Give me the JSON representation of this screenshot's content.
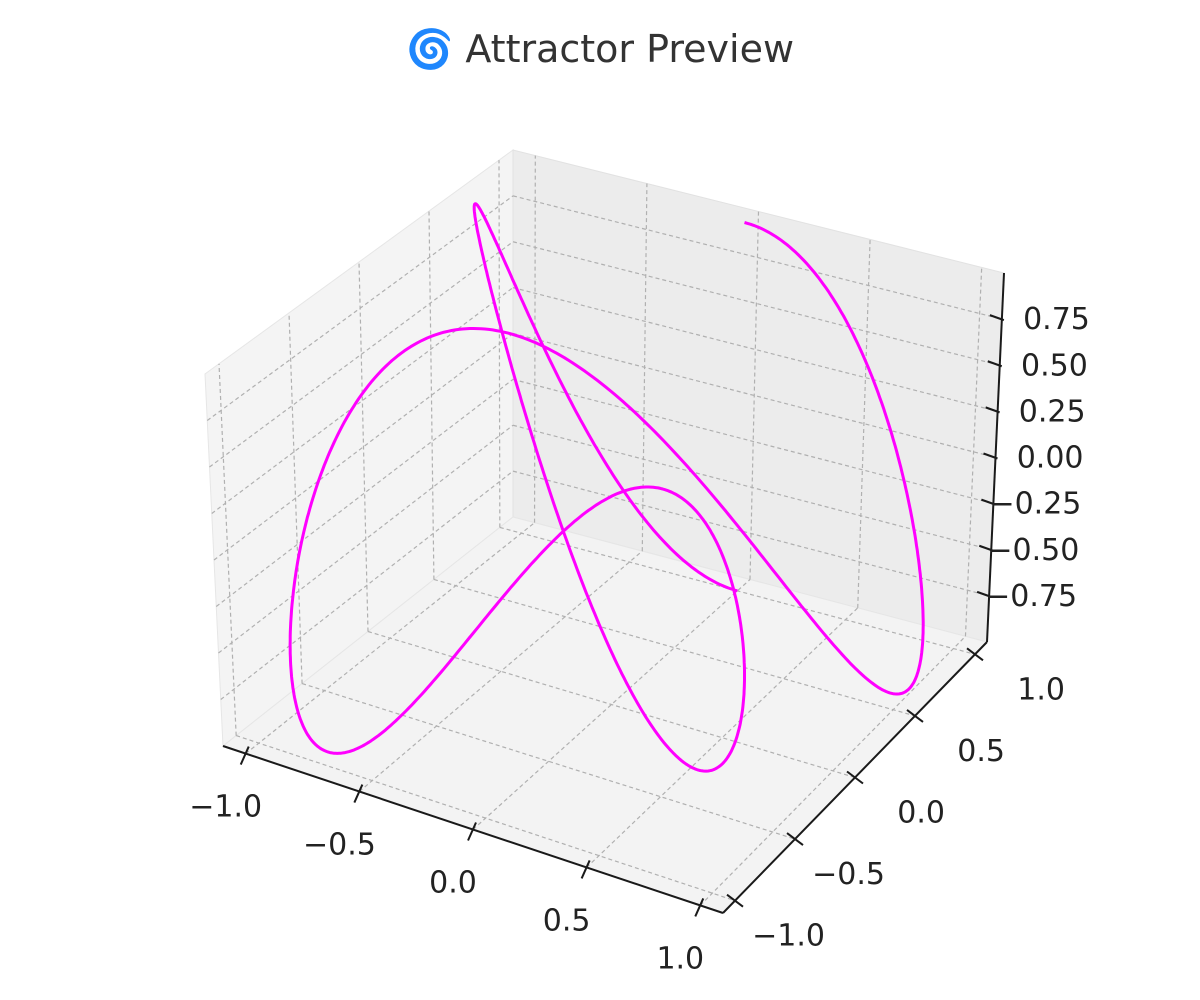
{
  "title": "🌀 Attractor Preview",
  "colors": {
    "curve": "#ff00ff",
    "pane_left": "#f4f4f4",
    "pane_right": "#ececec",
    "pane_floor": "#f3f3f3",
    "grid": "#b0b0b0",
    "axis_line": "#1a1a1a",
    "text": "#222222"
  },
  "chart_data": {
    "type": "line3d",
    "title": "🌀 Attractor Preview",
    "xlim": [
      -1.1,
      1.1
    ],
    "ylim": [
      -1.1,
      1.1
    ],
    "zlim": [
      -1.0,
      1.0
    ],
    "x_ticks": [
      "−1.0",
      "−0.5",
      "0.0",
      "0.5",
      "1.0"
    ],
    "y_ticks": [
      "−1.0",
      "−0.5",
      "0.0",
      "0.5",
      "1.0"
    ],
    "z_ticks": [
      "−0.75",
      "−0.50",
      "−0.25",
      "0.00",
      "0.25",
      "0.50",
      "0.75"
    ],
    "x_tick_values": [
      -1.0,
      -0.5,
      0.0,
      0.5,
      1.0
    ],
    "y_tick_values": [
      -1.0,
      -0.5,
      0.0,
      0.5,
      1.0
    ],
    "z_tick_values": [
      -0.75,
      -0.5,
      -0.25,
      0.0,
      0.25,
      0.5,
      0.75
    ],
    "grid": true,
    "series": [
      {
        "line_color": "#ff00ff",
        "curve": {
          "x": "sin(2t)",
          "y": "cos(t)",
          "z": "cos(3.5t)",
          "t_range": [
            0,
            6.2832
          ],
          "samples": 900
        }
      }
    ]
  }
}
